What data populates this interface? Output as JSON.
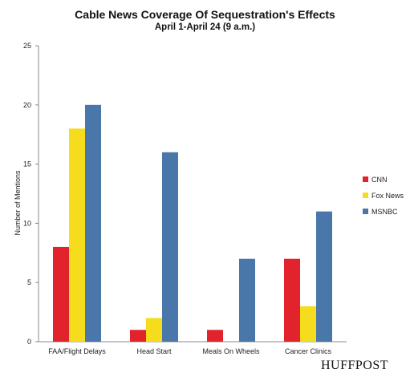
{
  "chart_data": {
    "type": "bar",
    "title": "Cable News Coverage Of Sequestration's Effects",
    "subtitle": "April 1-April 24 (9 a.m.)",
    "xlabel": "",
    "ylabel": "Number of Mentions",
    "ylim": [
      0,
      25
    ],
    "yticks": [
      0,
      5,
      10,
      15,
      20,
      25
    ],
    "grid": false,
    "legend_position": "right",
    "categories": [
      "FAA/Flight Delays",
      "Head Start",
      "Meals On Wheels",
      "Cancer Clinics"
    ],
    "series": [
      {
        "name": "CNN",
        "color": "#e3232c",
        "values": [
          8,
          1,
          1,
          7
        ]
      },
      {
        "name": "Fox News",
        "color": "#f5dd1d",
        "values": [
          18,
          2,
          0,
          3
        ]
      },
      {
        "name": "MSNBC",
        "color": "#4a77aa",
        "values": [
          20,
          16,
          7,
          11
        ]
      }
    ]
  },
  "brand": "HUFFPOST"
}
